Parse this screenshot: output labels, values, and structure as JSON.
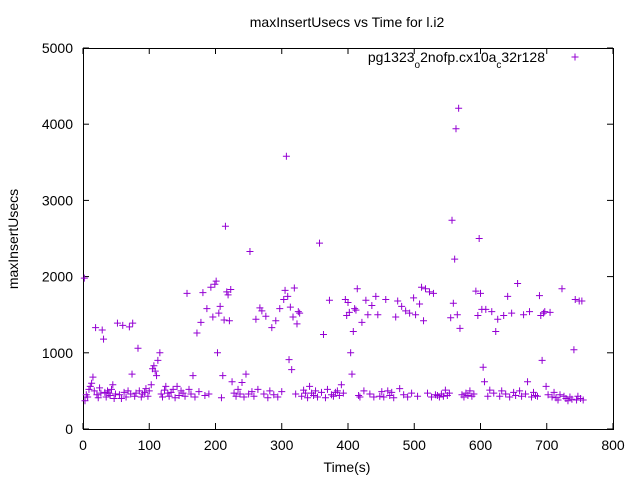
{
  "chart_data": {
    "type": "scatter",
    "title": "maxInsertUsecs vs Time for l.i2",
    "xlabel": "Time(s)",
    "ylabel": "maxInsertUsecs",
    "xlim": [
      0,
      800
    ],
    "ylim": [
      0,
      5000
    ],
    "xticks": [
      "0",
      "100",
      "200",
      "300",
      "400",
      "500",
      "600",
      "700",
      "800"
    ],
    "yticks": [
      "0",
      "1000",
      "2000",
      "3000",
      "4000",
      "5000"
    ],
    "grid": false,
    "legend_position": "top-right",
    "series": [
      {
        "name": "pg1323_o2nofp.cx10a_c32r128",
        "color": "#9400d3",
        "marker": "+",
        "points": [
          [
            2,
            1980
          ],
          [
            3,
            370
          ],
          [
            5,
            450
          ],
          [
            7,
            420
          ],
          [
            9,
            520
          ],
          [
            11,
            560
          ],
          [
            13,
            600
          ],
          [
            15,
            680
          ],
          [
            17,
            500
          ],
          [
            19,
            1330
          ],
          [
            21,
            450
          ],
          [
            23,
            410
          ],
          [
            25,
            540
          ],
          [
            27,
            470
          ],
          [
            29,
            1300
          ],
          [
            31,
            1180
          ],
          [
            33,
            480
          ],
          [
            35,
            420
          ],
          [
            37,
            500
          ],
          [
            39,
            470
          ],
          [
            41,
            440
          ],
          [
            43,
            520
          ],
          [
            45,
            580
          ],
          [
            47,
            400
          ],
          [
            49,
            460
          ],
          [
            52,
            1390
          ],
          [
            55,
            450
          ],
          [
            58,
            400
          ],
          [
            60,
            1360
          ],
          [
            62,
            480
          ],
          [
            65,
            420
          ],
          [
            68,
            500
          ],
          [
            70,
            1340
          ],
          [
            72,
            460
          ],
          [
            74,
            720
          ],
          [
            75,
            1390
          ],
          [
            78,
            430
          ],
          [
            80,
            470
          ],
          [
            83,
            1060
          ],
          [
            85,
            500
          ],
          [
            88,
            420
          ],
          [
            90,
            460
          ],
          [
            93,
            480
          ],
          [
            95,
            530
          ],
          [
            98,
            430
          ],
          [
            100,
            500
          ],
          [
            103,
            580
          ],
          [
            105,
            790
          ],
          [
            107,
            830
          ],
          [
            109,
            760
          ],
          [
            111,
            700
          ],
          [
            113,
            900
          ],
          [
            116,
            1000
          ],
          [
            118,
            460
          ],
          [
            120,
            420
          ],
          [
            123,
            510
          ],
          [
            125,
            560
          ],
          [
            128,
            470
          ],
          [
            130,
            430
          ],
          [
            133,
            480
          ],
          [
            136,
            520
          ],
          [
            139,
            410
          ],
          [
            142,
            560
          ],
          [
            145,
            440
          ],
          [
            148,
            500
          ],
          [
            151,
            470
          ],
          [
            154,
            430
          ],
          [
            157,
            1780
          ],
          [
            160,
            520
          ],
          [
            163,
            460
          ],
          [
            166,
            700
          ],
          [
            169,
            420
          ],
          [
            172,
            1260
          ],
          [
            175,
            490
          ],
          [
            178,
            1400
          ],
          [
            181,
            1790
          ],
          [
            184,
            440
          ],
          [
            187,
            1580
          ],
          [
            190,
            460
          ],
          [
            193,
            1860
          ],
          [
            196,
            1470
          ],
          [
            199,
            1900
          ],
          [
            201,
            1940
          ],
          [
            203,
            1000
          ],
          [
            205,
            1520
          ],
          [
            207,
            1610
          ],
          [
            209,
            410
          ],
          [
            211,
            700
          ],
          [
            213,
            1430
          ],
          [
            215,
            2660
          ],
          [
            217,
            1800
          ],
          [
            219,
            1760
          ],
          [
            221,
            1420
          ],
          [
            223,
            1830
          ],
          [
            225,
            620
          ],
          [
            228,
            470
          ],
          [
            231,
            430
          ],
          [
            234,
            520
          ],
          [
            237,
            460
          ],
          [
            240,
            610
          ],
          [
            243,
            420
          ],
          [
            246,
            720
          ],
          [
            250,
            460
          ],
          [
            252,
            2330
          ],
          [
            255,
            490
          ],
          [
            258,
            430
          ],
          [
            261,
            1440
          ],
          [
            264,
            520
          ],
          [
            267,
            1590
          ],
          [
            270,
            1550
          ],
          [
            273,
            460
          ],
          [
            276,
            1480
          ],
          [
            279,
            410
          ],
          [
            282,
            500
          ],
          [
            285,
            1330
          ],
          [
            288,
            450
          ],
          [
            291,
            1420
          ],
          [
            294,
            420
          ],
          [
            297,
            1580
          ],
          [
            300,
            490
          ],
          [
            303,
            1700
          ],
          [
            305,
            1820
          ],
          [
            307,
            3580
          ],
          [
            309,
            1740
          ],
          [
            311,
            910
          ],
          [
            313,
            1600
          ],
          [
            315,
            780
          ],
          [
            317,
            1470
          ],
          [
            319,
            1850
          ],
          [
            321,
            460
          ],
          [
            323,
            1380
          ],
          [
            325,
            1540
          ],
          [
            327,
            1520
          ],
          [
            330,
            430
          ],
          [
            333,
            510
          ],
          [
            336,
            470
          ],
          [
            339,
            410
          ],
          [
            342,
            560
          ],
          [
            345,
            470
          ],
          [
            348,
            440
          ],
          [
            351,
            500
          ],
          [
            354,
            420
          ],
          [
            357,
            2440
          ],
          [
            360,
            480
          ],
          [
            363,
            1240
          ],
          [
            366,
            410
          ],
          [
            369,
            520
          ],
          [
            372,
            1690
          ],
          [
            375,
            450
          ],
          [
            378,
            430
          ],
          [
            381,
            480
          ],
          [
            384,
            500
          ],
          [
            387,
            440
          ],
          [
            390,
            580
          ],
          [
            393,
            470
          ],
          [
            396,
            1700
          ],
          [
            398,
            1490
          ],
          [
            400,
            1660
          ],
          [
            402,
            1530
          ],
          [
            404,
            1000
          ],
          [
            406,
            720
          ],
          [
            408,
            1280
          ],
          [
            410,
            1580
          ],
          [
            412,
            1560
          ],
          [
            414,
            1840
          ],
          [
            416,
            440
          ],
          [
            418,
            420
          ],
          [
            421,
            1400
          ],
          [
            424,
            500
          ],
          [
            427,
            1690
          ],
          [
            430,
            1500
          ],
          [
            433,
            460
          ],
          [
            436,
            1620
          ],
          [
            439,
            420
          ],
          [
            442,
            1740
          ],
          [
            445,
            1500
          ],
          [
            448,
            430
          ],
          [
            451,
            490
          ],
          [
            454,
            420
          ],
          [
            457,
            1700
          ],
          [
            460,
            500
          ],
          [
            463,
            440
          ],
          [
            466,
            480
          ],
          [
            469,
            410
          ],
          [
            472,
            1470
          ],
          [
            475,
            1680
          ],
          [
            478,
            530
          ],
          [
            481,
            1610
          ],
          [
            484,
            450
          ],
          [
            487,
            1550
          ],
          [
            490,
            420
          ],
          [
            493,
            1520
          ],
          [
            496,
            470
          ],
          [
            499,
            1720
          ],
          [
            502,
            1500
          ],
          [
            505,
            430
          ],
          [
            508,
            1640
          ],
          [
            511,
            1860
          ],
          [
            514,
            1420
          ],
          [
            517,
            1840
          ],
          [
            520,
            470
          ],
          [
            523,
            1800
          ],
          [
            526,
            420
          ],
          [
            529,
            1780
          ],
          [
            532,
            450
          ],
          [
            535,
            440
          ],
          [
            538,
            420
          ],
          [
            541,
            460
          ],
          [
            544,
            430
          ],
          [
            547,
            510
          ],
          [
            550,
            440
          ],
          [
            553,
            470
          ],
          [
            555,
            1460
          ],
          [
            557,
            2740
          ],
          [
            559,
            1650
          ],
          [
            561,
            2230
          ],
          [
            563,
            3940
          ],
          [
            565,
            1500
          ],
          [
            567,
            4210
          ],
          [
            569,
            1320
          ],
          [
            572,
            450
          ],
          [
            575,
            420
          ],
          [
            578,
            470
          ],
          [
            581,
            440
          ],
          [
            584,
            500
          ],
          [
            587,
            430
          ],
          [
            590,
            460
          ],
          [
            593,
            1810
          ],
          [
            596,
            1490
          ],
          [
            598,
            2500
          ],
          [
            600,
            1780
          ],
          [
            602,
            1570
          ],
          [
            604,
            810
          ],
          [
            606,
            620
          ],
          [
            608,
            1570
          ],
          [
            611,
            430
          ],
          [
            614,
            510
          ],
          [
            617,
            1540
          ],
          [
            620,
            470
          ],
          [
            623,
            1280
          ],
          [
            626,
            1440
          ],
          [
            629,
            430
          ],
          [
            632,
            500
          ],
          [
            635,
            1490
          ],
          [
            638,
            460
          ],
          [
            641,
            1740
          ],
          [
            644,
            420
          ],
          [
            647,
            1520
          ],
          [
            650,
            480
          ],
          [
            653,
            440
          ],
          [
            656,
            1910
          ],
          [
            659,
            500
          ],
          [
            662,
            430
          ],
          [
            665,
            1500
          ],
          [
            668,
            460
          ],
          [
            671,
            620
          ],
          [
            674,
            1540
          ],
          [
            677,
            420
          ],
          [
            680,
            480
          ],
          [
            683,
            440
          ],
          [
            686,
            430
          ],
          [
            689,
            1750
          ],
          [
            691,
            1490
          ],
          [
            693,
            900
          ],
          [
            695,
            1520
          ],
          [
            697,
            1540
          ],
          [
            699,
            560
          ],
          [
            702,
            450
          ],
          [
            705,
            1530
          ],
          [
            708,
            420
          ],
          [
            711,
            480
          ],
          [
            714,
            410
          ],
          [
            717,
            380
          ],
          [
            720,
            450
          ],
          [
            723,
            1840
          ],
          [
            726,
            430
          ],
          [
            729,
            400
          ],
          [
            732,
            370
          ],
          [
            735,
            420
          ],
          [
            738,
            390
          ],
          [
            741,
            1040
          ],
          [
            743,
            1700
          ],
          [
            745,
            380
          ],
          [
            747,
            430
          ],
          [
            749,
            1680
          ],
          [
            751,
            400
          ],
          [
            753,
            1680
          ],
          [
            755,
            380
          ]
        ]
      }
    ]
  }
}
